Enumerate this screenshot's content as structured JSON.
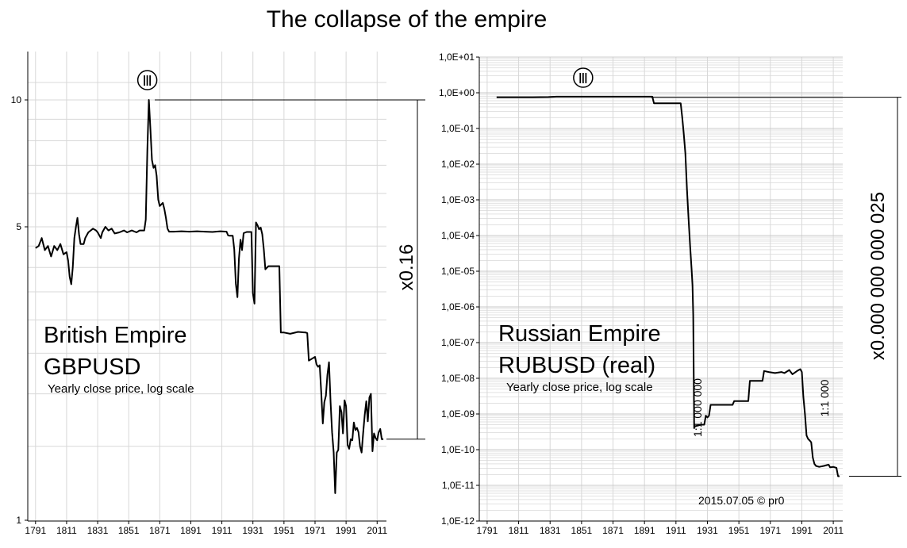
{
  "title": "The collapse of the empire",
  "chart_data": [
    {
      "type": "line",
      "name": "british",
      "label_line1": "British Empire",
      "label_line2": "GBPUSD",
      "note": "Yearly close price, log scale",
      "multiplier": "x0.16",
      "marker": "Ⅲ",
      "marker_year": 1864,
      "log_scale": true,
      "grid": true,
      "xlim": [
        1786,
        2017
      ],
      "ylim": [
        1,
        12
      ],
      "x_ticks": [
        "1791",
        "1811",
        "1831",
        "1851",
        "1871",
        "1891",
        "1911",
        "1931",
        "1951",
        "1971",
        "1991",
        "2011"
      ],
      "y_ticks": [
        "1",
        "5",
        "10"
      ],
      "y_tick_values": [
        1,
        5,
        10
      ],
      "points": [
        [
          1791,
          4.45
        ],
        [
          1793,
          4.5
        ],
        [
          1795,
          4.7
        ],
        [
          1797,
          4.4
        ],
        [
          1799,
          4.5
        ],
        [
          1801,
          4.25
        ],
        [
          1803,
          4.5
        ],
        [
          1805,
          4.4
        ],
        [
          1807,
          4.55
        ],
        [
          1809,
          4.3
        ],
        [
          1811,
          4.35
        ],
        [
          1812,
          4.15
        ],
        [
          1813,
          3.8
        ],
        [
          1814,
          3.65
        ],
        [
          1815,
          4.0
        ],
        [
          1816,
          4.7
        ],
        [
          1817,
          5.0
        ],
        [
          1818,
          5.25
        ],
        [
          1819,
          4.8
        ],
        [
          1820,
          4.55
        ],
        [
          1822,
          4.55
        ],
        [
          1823,
          4.7
        ],
        [
          1825,
          4.85
        ],
        [
          1828,
          4.95
        ],
        [
          1830,
          4.9
        ],
        [
          1831,
          4.85
        ],
        [
          1833,
          4.7
        ],
        [
          1834,
          4.85
        ],
        [
          1836,
          5.0
        ],
        [
          1838,
          4.9
        ],
        [
          1840,
          4.95
        ],
        [
          1842,
          4.82
        ],
        [
          1845,
          4.85
        ],
        [
          1848,
          4.9
        ],
        [
          1850,
          4.85
        ],
        [
          1853,
          4.9
        ],
        [
          1856,
          4.85
        ],
        [
          1858,
          4.9
        ],
        [
          1861,
          4.9
        ],
        [
          1862,
          5.2
        ],
        [
          1863,
          7.6
        ],
        [
          1864,
          10.0
        ],
        [
          1865,
          8.5
        ],
        [
          1866,
          7.2
        ],
        [
          1867,
          6.9
        ],
        [
          1868,
          7.0
        ],
        [
          1869,
          6.6
        ],
        [
          1870,
          5.8
        ],
        [
          1871,
          5.6
        ],
        [
          1873,
          5.7
        ],
        [
          1874,
          5.5
        ],
        [
          1875,
          5.25
        ],
        [
          1876,
          4.95
        ],
        [
          1877,
          4.87
        ],
        [
          1880,
          4.87
        ],
        [
          1885,
          4.88
        ],
        [
          1890,
          4.87
        ],
        [
          1895,
          4.88
        ],
        [
          1900,
          4.87
        ],
        [
          1905,
          4.86
        ],
        [
          1910,
          4.88
        ],
        [
          1914,
          4.87
        ],
        [
          1915,
          4.77
        ],
        [
          1916,
          4.76
        ],
        [
          1917,
          4.76
        ],
        [
          1918,
          4.76
        ],
        [
          1919,
          4.42
        ],
        [
          1920,
          3.66
        ],
        [
          1921,
          3.4
        ],
        [
          1922,
          4.2
        ],
        [
          1923,
          4.66
        ],
        [
          1924,
          4.4
        ],
        [
          1925,
          4.83
        ],
        [
          1927,
          4.86
        ],
        [
          1929,
          4.86
        ],
        [
          1930,
          4.86
        ],
        [
          1931,
          3.47
        ],
        [
          1932,
          3.28
        ],
        [
          1933,
          5.12
        ],
        [
          1934,
          5.04
        ],
        [
          1935,
          4.93
        ],
        [
          1936,
          4.98
        ],
        [
          1937,
          4.8
        ],
        [
          1938,
          4.43
        ],
        [
          1939,
          3.96
        ],
        [
          1941,
          4.03
        ],
        [
          1944,
          4.03
        ],
        [
          1946,
          4.03
        ],
        [
          1948,
          4.03
        ],
        [
          1949,
          2.8
        ],
        [
          1951,
          2.8
        ],
        [
          1955,
          2.78
        ],
        [
          1960,
          2.81
        ],
        [
          1965,
          2.8
        ],
        [
          1966,
          2.79
        ],
        [
          1967,
          2.4
        ],
        [
          1971,
          2.45
        ],
        [
          1972,
          2.35
        ],
        [
          1973,
          2.32
        ],
        [
          1974,
          2.34
        ],
        [
          1975,
          2.02
        ],
        [
          1976,
          1.7
        ],
        [
          1977,
          1.91
        ],
        [
          1978,
          1.98
        ],
        [
          1979,
          2.22
        ],
        [
          1980,
          2.38
        ],
        [
          1981,
          1.91
        ],
        [
          1982,
          1.62
        ],
        [
          1983,
          1.45
        ],
        [
          1984,
          1.16
        ],
        [
          1985,
          1.45
        ],
        [
          1986,
          1.47
        ],
        [
          1987,
          1.87
        ],
        [
          1988,
          1.81
        ],
        [
          1989,
          1.61
        ],
        [
          1990,
          1.93
        ],
        [
          1991,
          1.87
        ],
        [
          1992,
          1.51
        ],
        [
          1993,
          1.48
        ],
        [
          1994,
          1.56
        ],
        [
          1995,
          1.55
        ],
        [
          1996,
          1.71
        ],
        [
          1997,
          1.64
        ],
        [
          1998,
          1.66
        ],
        [
          1999,
          1.62
        ],
        [
          2000,
          1.5
        ],
        [
          2001,
          1.45
        ],
        [
          2002,
          1.61
        ],
        [
          2003,
          1.78
        ],
        [
          2004,
          1.92
        ],
        [
          2005,
          1.72
        ],
        [
          2006,
          1.96
        ],
        [
          2007,
          2.0
        ],
        [
          2008,
          1.46
        ],
        [
          2009,
          1.61
        ],
        [
          2010,
          1.57
        ],
        [
          2011,
          1.55
        ],
        [
          2012,
          1.62
        ],
        [
          2013,
          1.65
        ],
        [
          2014,
          1.56
        ],
        [
          2015,
          1.56
        ]
      ]
    },
    {
      "type": "line",
      "name": "russian",
      "label_line1": "Russian Empire",
      "label_line2": "RUBUSD (real)",
      "note": "Yearly close price, log scale",
      "multiplier": "x0.000 000 000 025",
      "marker": "Ⅲ",
      "marker_year": 1852,
      "annotation_1": "1:1 000 000",
      "annotation_2": "1:1 000",
      "credit": "2015.07.05 © pr0",
      "log_scale": true,
      "grid": true,
      "xlim": [
        1786,
        2017
      ],
      "ylim_exp": [
        -12,
        1
      ],
      "x_ticks": [
        "1791",
        "1811",
        "1831",
        "1851",
        "1871",
        "1891",
        "1911",
        "1931",
        "1951",
        "1971",
        "1991",
        "2011"
      ],
      "y_ticks": [
        "1,0E+01",
        "1,0E+00",
        "1,0E-01",
        "1,0E-02",
        "1,0E-03",
        "1,0E-04",
        "1,0E-05",
        "1,0E-06",
        "1,0E-07",
        "1,0E-08",
        "1,0E-09",
        "1,0E-10",
        "1,0E-11",
        "1,0E-12"
      ],
      "y_tick_exponents": [
        1,
        0,
        -1,
        -2,
        -3,
        -4,
        -5,
        -6,
        -7,
        -8,
        -9,
        -10,
        -11,
        -12
      ],
      "points": [
        [
          1797,
          0.75
        ],
        [
          1800,
          0.75
        ],
        [
          1810,
          0.75
        ],
        [
          1820,
          0.75
        ],
        [
          1830,
          0.76
        ],
        [
          1835,
          0.78
        ],
        [
          1850,
          0.78
        ],
        [
          1870,
          0.78
        ],
        [
          1890,
          0.78
        ],
        [
          1896,
          0.78
        ],
        [
          1897,
          0.51
        ],
        [
          1905,
          0.51
        ],
        [
          1914,
          0.51
        ],
        [
          1915,
          0.2
        ],
        [
          1916,
          0.07
        ],
        [
          1917,
          0.02
        ],
        [
          1918,
          0.002
        ],
        [
          1919,
          0.0003
        ],
        [
          1920,
          5e-05
        ],
        [
          1921,
          1e-05
        ],
        [
          1921.5,
          4e-06
        ],
        [
          1922,
          6e-07
        ],
        [
          1922.6,
          4e-10
        ],
        [
          1923,
          4.5e-10
        ],
        [
          1927,
          5e-10
        ],
        [
          1929,
          5e-10
        ],
        [
          1930,
          9e-10
        ],
        [
          1931,
          8e-10
        ],
        [
          1932,
          9e-10
        ],
        [
          1933,
          1.8e-09
        ],
        [
          1940,
          1.8e-09
        ],
        [
          1947,
          1.8e-09
        ],
        [
          1948,
          2.3e-09
        ],
        [
          1957,
          2.3e-09
        ],
        [
          1958,
          8.5e-09
        ],
        [
          1966,
          8.5e-09
        ],
        [
          1967,
          1.6e-08
        ],
        [
          1970,
          1.5e-08
        ],
        [
          1974,
          1.4e-08
        ],
        [
          1978,
          1.5e-08
        ],
        [
          1980,
          1.4e-08
        ],
        [
          1983,
          1.7e-08
        ],
        [
          1985,
          1.3e-08
        ],
        [
          1988,
          1.6e-08
        ],
        [
          1990,
          1.8e-08
        ],
        [
          1991,
          1.5e-08
        ],
        [
          1992,
          3e-09
        ],
        [
          1993,
          1e-09
        ],
        [
          1994,
          2.5e-10
        ],
        [
          1995,
          2e-10
        ],
        [
          1996,
          1.8e-10
        ],
        [
          1997,
          1.6e-10
        ],
        [
          1998,
          6e-11
        ],
        [
          1999,
          4e-11
        ],
        [
          2000,
          3.5e-11
        ],
        [
          2002,
          3.3e-11
        ],
        [
          2005,
          3.5e-11
        ],
        [
          2008,
          3.8e-11
        ],
        [
          2009,
          3.2e-11
        ],
        [
          2011,
          3.3e-11
        ],
        [
          2013,
          3.1e-11
        ],
        [
          2014,
          1.8e-11
        ],
        [
          2015,
          1.8e-11
        ]
      ]
    }
  ]
}
